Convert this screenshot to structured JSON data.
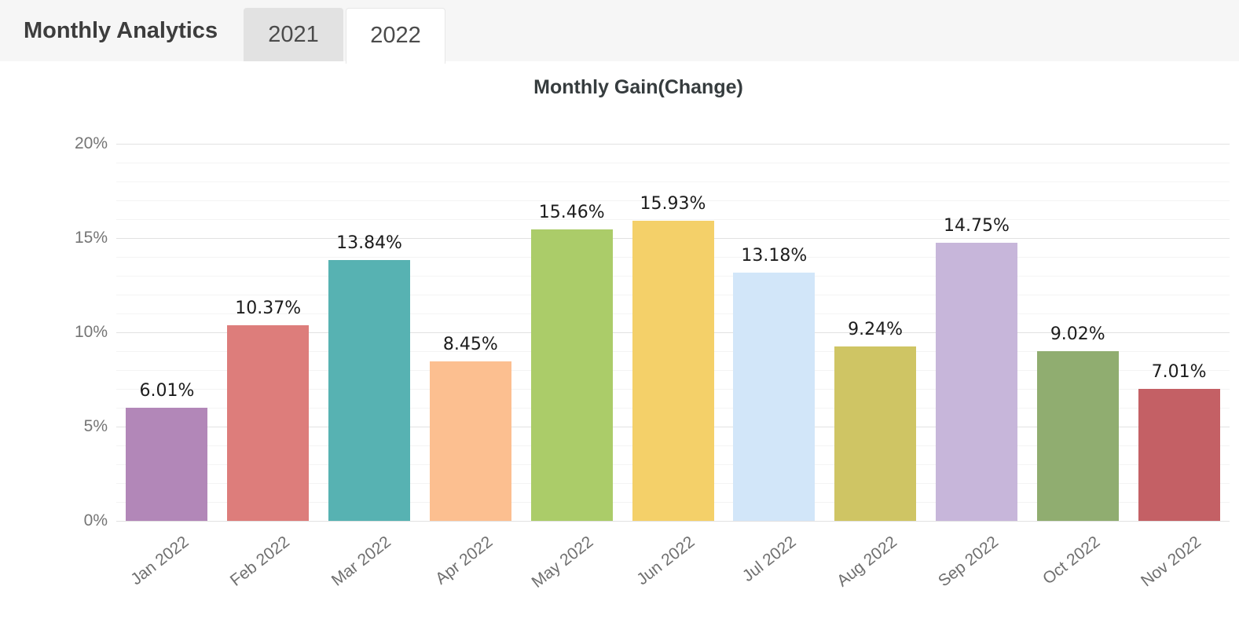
{
  "header": {
    "title": "Monthly Analytics",
    "tabs": [
      {
        "label": "2021",
        "active": false
      },
      {
        "label": "2022",
        "active": true
      }
    ]
  },
  "chart_data": {
    "type": "bar",
    "title": "Monthly Gain(Change)",
    "categories": [
      "Jan 2022",
      "Feb 2022",
      "Mar 2022",
      "Apr 2022",
      "May 2022",
      "Jun 2022",
      "Jul 2022",
      "Aug 2022",
      "Sep 2022",
      "Oct 2022",
      "Nov 2022"
    ],
    "values": [
      6.01,
      10.37,
      13.84,
      8.45,
      15.46,
      15.93,
      13.18,
      9.24,
      14.75,
      9.02,
      7.01
    ],
    "data_labels": [
      "6.01%",
      "10.37%",
      "13.84%",
      "8.45%",
      "15.46%",
      "15.93%",
      "13.18%",
      "9.24%",
      "14.75%",
      "9.02%",
      "7.01%"
    ],
    "bar_colors": [
      "#b287b8",
      "#dd7d7b",
      "#57b2b2",
      "#fcbf90",
      "#abcc69",
      "#f4d069",
      "#d2e6f9",
      "#cfc564",
      "#c7b6da",
      "#90ad70",
      "#c46065"
    ],
    "xlabel": "",
    "ylabel": "",
    "ylim": [
      0,
      20
    ],
    "y_tick_labels": [
      "0%",
      "5%",
      "10%",
      "15%",
      "20%"
    ],
    "y_major_step": 5,
    "y_minor_step": 1,
    "x_label_rotation_deg": -38,
    "grid": true,
    "legend": "none"
  },
  "colors": {
    "header_bg": "#f6f6f6",
    "tab_inactive_bg": "#e2e2e2",
    "tab_active_bg": "#ffffff",
    "grid_major": "#e2e2e2",
    "grid_minor": "#f4f4f4",
    "axis_label": "#757575",
    "x_label": "#6f6f6f",
    "data_label": "#1c1c1c",
    "title_text": "#363c3e",
    "header_text": "#3d3d3d"
  }
}
